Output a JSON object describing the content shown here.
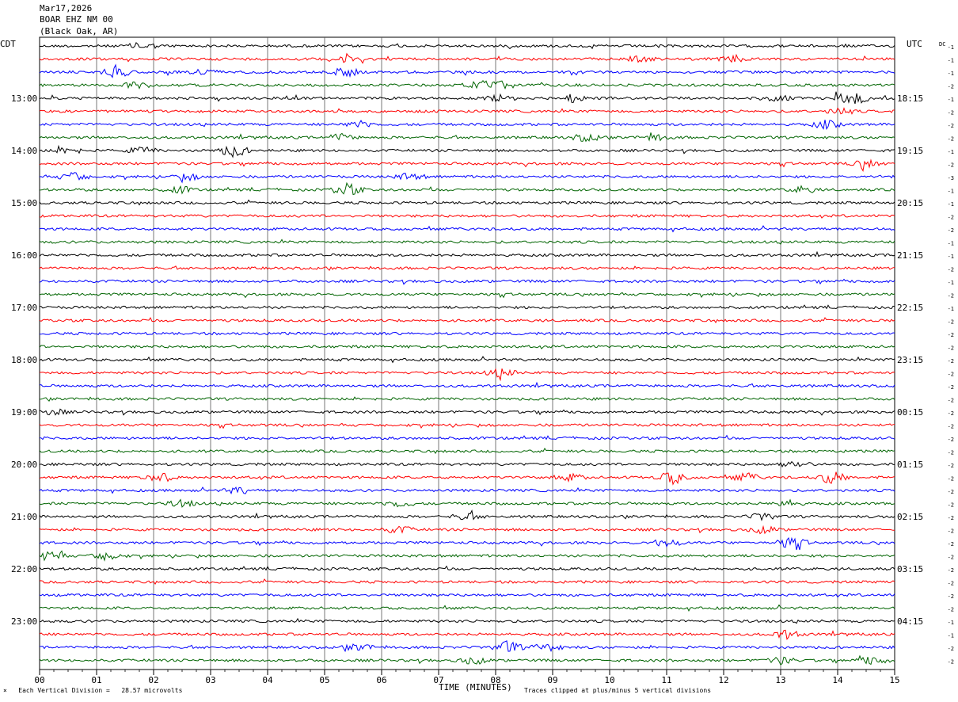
{
  "header": {
    "date": "Mar17,2026",
    "station": "BOAR EHZ NM 00",
    "location": "(Black Oak, AR)"
  },
  "labels": {
    "left_tz": "CDT",
    "right_tz": "UTC",
    "dc": "DC",
    "footer_left": "Each Vertical Division =   28.57 microvolts",
    "footer_mid": "TIME (MINUTES)",
    "footer_right": "Traces clipped at plus/minus 5 vertical divisions",
    "marker": "×"
  },
  "chart_data": {
    "type": "line",
    "title": "Mar17,2026 BOAR EHZ NM 00 (Black Oak, AR)",
    "xlabel": "TIME (MINUTES)",
    "x_ticks": [
      "00",
      "01",
      "02",
      "03",
      "04",
      "05",
      "06",
      "07",
      "08",
      "09",
      "10",
      "11",
      "12",
      "13",
      "14",
      "15"
    ],
    "xlim": [
      0,
      15
    ],
    "grid": true,
    "trace_minutes": 15,
    "trace_count": 48,
    "trace_colors": [
      "#000000",
      "#ff0000",
      "#0000ff",
      "#006400"
    ],
    "left_time_labels": [
      {
        "trace": 4,
        "label": "13:00"
      },
      {
        "trace": 8,
        "label": "14:00"
      },
      {
        "trace": 12,
        "label": "15:00"
      },
      {
        "trace": 16,
        "label": "16:00"
      },
      {
        "trace": 20,
        "label": "17:00"
      },
      {
        "trace": 24,
        "label": "18:00"
      },
      {
        "trace": 28,
        "label": "19:00"
      },
      {
        "trace": 32,
        "label": "20:00"
      },
      {
        "trace": 36,
        "label": "21:00"
      },
      {
        "trace": 40,
        "label": "22:00"
      },
      {
        "trace": 44,
        "label": "23:00"
      }
    ],
    "right_time_labels": [
      {
        "trace": 4,
        "label": "18:15"
      },
      {
        "trace": 8,
        "label": "19:15"
      },
      {
        "trace": 12,
        "label": "20:15"
      },
      {
        "trace": 16,
        "label": "21:15"
      },
      {
        "trace": 20,
        "label": "22:15"
      },
      {
        "trace": 24,
        "label": "23:15"
      },
      {
        "trace": 28,
        "label": "00:15"
      },
      {
        "trace": 32,
        "label": "01:15"
      },
      {
        "trace": 36,
        "label": "02:15"
      },
      {
        "trace": 40,
        "label": "03:15"
      },
      {
        "trace": 44,
        "label": "04:15"
      }
    ],
    "dc_offsets": [
      -1,
      -1,
      -1,
      -2,
      -1,
      -2,
      -2,
      -2,
      -1,
      -2,
      -3,
      -1,
      -1,
      -2,
      -2,
      -1,
      -1,
      -2,
      -1,
      -2,
      -1,
      -2,
      -2,
      -2,
      -2,
      -2,
      -2,
      -2,
      -2,
      -2,
      -2,
      -2,
      -2,
      -2,
      -2,
      -2,
      -2,
      -2,
      -2,
      -2,
      -2,
      -2,
      -2,
      -2,
      -1,
      -1,
      -2,
      -2
    ],
    "events": [
      {
        "trace": 0,
        "minute": 1.8,
        "amp": 1.2
      },
      {
        "trace": 1,
        "minute": 5.35,
        "amp": 1.8
      },
      {
        "trace": 1,
        "minute": 10.5,
        "amp": 1.3
      },
      {
        "trace": 1,
        "minute": 12.2,
        "amp": 1.2
      },
      {
        "trace": 2,
        "minute": 1.35,
        "amp": 2.0
      },
      {
        "trace": 2,
        "minute": 2.9,
        "amp": 1.2
      },
      {
        "trace": 2,
        "minute": 5.35,
        "amp": 1.7
      },
      {
        "trace": 3,
        "minute": 1.7,
        "amp": 1.3
      },
      {
        "trace": 3,
        "minute": 7.7,
        "amp": 1.6
      },
      {
        "trace": 3,
        "minute": 8.1,
        "amp": 1.4
      },
      {
        "trace": 4,
        "minute": 8.1,
        "amp": 1.2
      },
      {
        "trace": 4,
        "minute": 9.35,
        "amp": 1.4
      },
      {
        "trace": 4,
        "minute": 12.9,
        "amp": 1.2
      },
      {
        "trace": 4,
        "minute": 14.25,
        "amp": 3.0
      },
      {
        "trace": 5,
        "minute": 14.05,
        "amp": 1.2
      },
      {
        "trace": 6,
        "minute": 5.6,
        "amp": 1.3
      },
      {
        "trace": 6,
        "minute": 13.8,
        "amp": 1.5
      },
      {
        "trace": 7,
        "minute": 5.3,
        "amp": 1.3
      },
      {
        "trace": 7,
        "minute": 9.6,
        "amp": 1.4
      },
      {
        "trace": 7,
        "minute": 10.8,
        "amp": 1.2
      },
      {
        "trace": 8,
        "minute": 0.5,
        "amp": 1.3
      },
      {
        "trace": 8,
        "minute": 3.4,
        "amp": 2.2
      },
      {
        "trace": 8,
        "minute": 1.8,
        "amp": 1.2
      },
      {
        "trace": 9,
        "minute": 14.5,
        "amp": 1.6
      },
      {
        "trace": 10,
        "minute": 0.6,
        "amp": 1.5
      },
      {
        "trace": 10,
        "minute": 2.6,
        "amp": 1.2
      },
      {
        "trace": 10,
        "minute": 6.5,
        "amp": 1.2
      },
      {
        "trace": 11,
        "minute": 2.45,
        "amp": 1.3
      },
      {
        "trace": 11,
        "minute": 5.4,
        "amp": 2.2
      },
      {
        "trace": 11,
        "minute": 13.4,
        "amp": 1.2
      },
      {
        "trace": 25,
        "minute": 8.1,
        "amp": 1.6
      },
      {
        "trace": 28,
        "minute": 0.2,
        "amp": 1.3
      },
      {
        "trace": 32,
        "minute": 13.25,
        "amp": 1.3
      },
      {
        "trace": 33,
        "minute": 2.1,
        "amp": 1.8
      },
      {
        "trace": 33,
        "minute": 9.3,
        "amp": 1.3
      },
      {
        "trace": 33,
        "minute": 11.1,
        "amp": 2.4
      },
      {
        "trace": 33,
        "minute": 12.4,
        "amp": 1.4
      },
      {
        "trace": 33,
        "minute": 13.9,
        "amp": 2.2
      },
      {
        "trace": 34,
        "minute": 3.5,
        "amp": 1.2
      },
      {
        "trace": 35,
        "minute": 2.5,
        "amp": 1.2
      },
      {
        "trace": 35,
        "minute": 6.3,
        "amp": 1.2
      },
      {
        "trace": 35,
        "minute": 13.1,
        "amp": 1.2
      },
      {
        "trace": 36,
        "minute": 7.5,
        "amp": 1.2
      },
      {
        "trace": 36,
        "minute": 12.7,
        "amp": 1.3
      },
      {
        "trace": 37,
        "minute": 6.3,
        "amp": 1.3
      },
      {
        "trace": 37,
        "minute": 12.7,
        "amp": 1.3
      },
      {
        "trace": 38,
        "minute": 11.0,
        "amp": 1.6
      },
      {
        "trace": 38,
        "minute": 13.2,
        "amp": 2.2
      },
      {
        "trace": 39,
        "minute": 0.2,
        "amp": 2.0
      },
      {
        "trace": 39,
        "minute": 1.2,
        "amp": 1.6
      },
      {
        "trace": 45,
        "minute": 13.1,
        "amp": 1.5
      },
      {
        "trace": 46,
        "minute": 8.2,
        "amp": 2.2
      },
      {
        "trace": 46,
        "minute": 8.9,
        "amp": 1.4
      },
      {
        "trace": 46,
        "minute": 5.6,
        "amp": 1.2
      },
      {
        "trace": 47,
        "minute": 7.6,
        "amp": 1.4
      },
      {
        "trace": 47,
        "minute": 13.0,
        "amp": 1.3
      },
      {
        "trace": 47,
        "minute": 14.6,
        "amp": 1.5
      }
    ]
  }
}
